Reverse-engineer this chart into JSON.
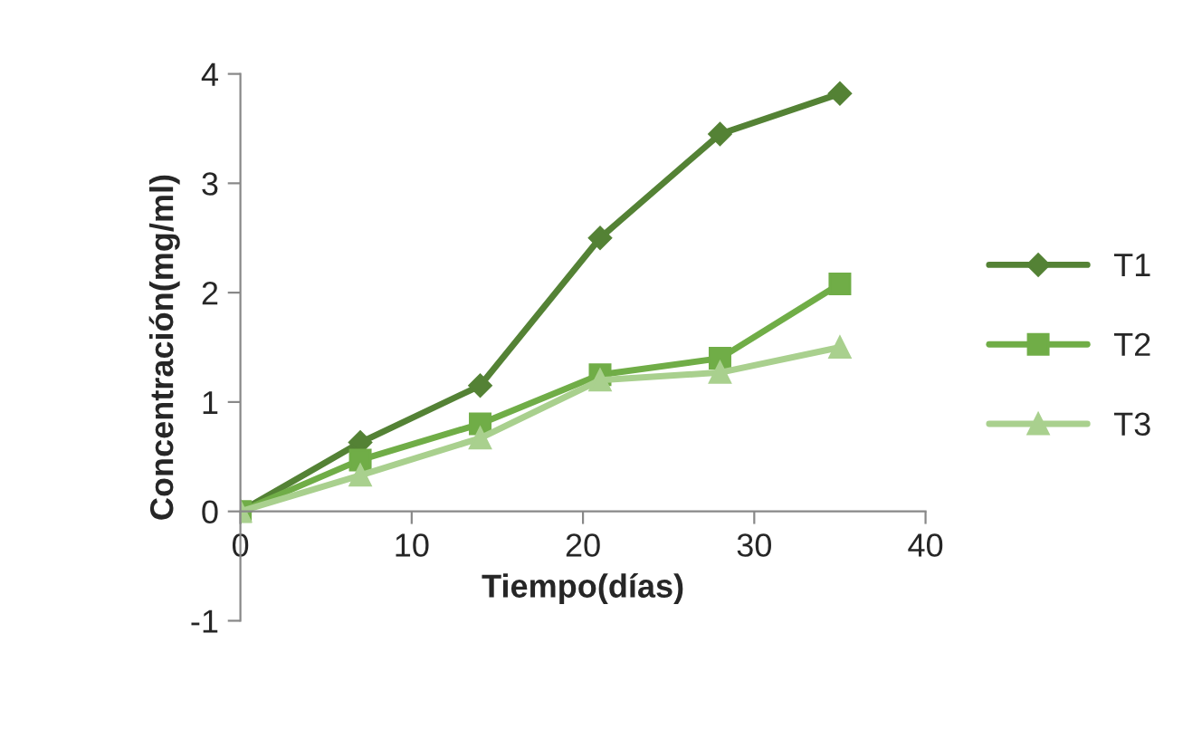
{
  "chart_data": {
    "type": "line",
    "xlabel": "Tiempo(días)",
    "ylabel": "Concentración(mg/ml)",
    "x": [
      0,
      7,
      14,
      21,
      28,
      35
    ],
    "series": [
      {
        "name": "T1",
        "color": "#548235",
        "marker": "diamond",
        "values": [
          0,
          0.63,
          1.15,
          2.5,
          3.45,
          3.82
        ]
      },
      {
        "name": "T2",
        "color": "#70ad47",
        "marker": "square",
        "values": [
          0,
          0.47,
          0.8,
          1.25,
          1.4,
          2.08
        ]
      },
      {
        "name": "T3",
        "color": "#a9d08e",
        "marker": "triangle",
        "values": [
          0,
          0.33,
          0.67,
          1.2,
          1.27,
          1.5
        ]
      }
    ],
    "xlim": [
      0,
      40
    ],
    "xticks": [
      0,
      10,
      20,
      30,
      40
    ],
    "ylim": [
      -1,
      4
    ],
    "yticks": [
      -1,
      0,
      1,
      2,
      3,
      4
    ],
    "grid": false,
    "legend": "right",
    "line_style": "solid"
  }
}
